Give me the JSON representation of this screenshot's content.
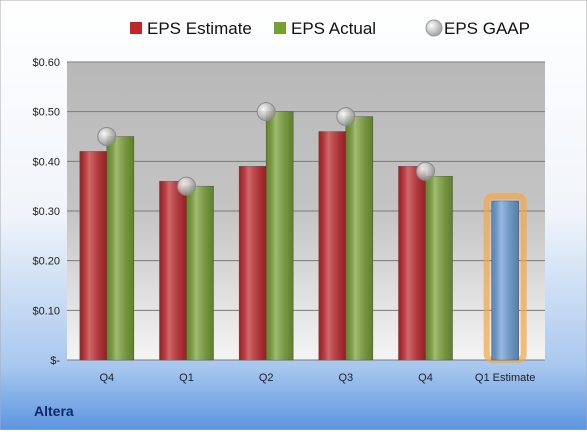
{
  "chart_data": {
    "type": "bar",
    "title": "Altera",
    "categories": [
      "Q4",
      "Q1",
      "Q2",
      "Q3",
      "Q4",
      "Q1 Estimate"
    ],
    "series": [
      {
        "name": "EPS Estimate",
        "color": "#c0262a",
        "point_colors": [
          "#c0262a",
          "#c0262a",
          "#c0262a",
          "#c0262a",
          "#c0262a",
          "#6a9fd8"
        ],
        "values": [
          0.42,
          0.36,
          0.39,
          0.46,
          0.39,
          0.32
        ]
      },
      {
        "name": "EPS Actual",
        "color": "#77a033",
        "values": [
          0.45,
          0.35,
          0.5,
          0.49,
          0.37,
          null
        ]
      },
      {
        "name": "EPS GAAP",
        "color": "#b4b4b4",
        "marker": "circle",
        "values": [
          0.45,
          0.35,
          0.5,
          0.49,
          0.38,
          null
        ]
      }
    ],
    "ylim": [
      0,
      0.6
    ],
    "yticks": [
      {
        "value": 0,
        "label": "$-"
      },
      {
        "value": 0.1,
        "label": "$0.10"
      },
      {
        "value": 0.2,
        "label": "$0.20"
      },
      {
        "value": 0.3,
        "label": "$0.30"
      },
      {
        "value": 0.4,
        "label": "$0.40"
      },
      {
        "value": 0.5,
        "label": "$0.50"
      },
      {
        "value": 0.6,
        "label": "$0.60"
      }
    ],
    "grid": true,
    "legend": "top"
  }
}
